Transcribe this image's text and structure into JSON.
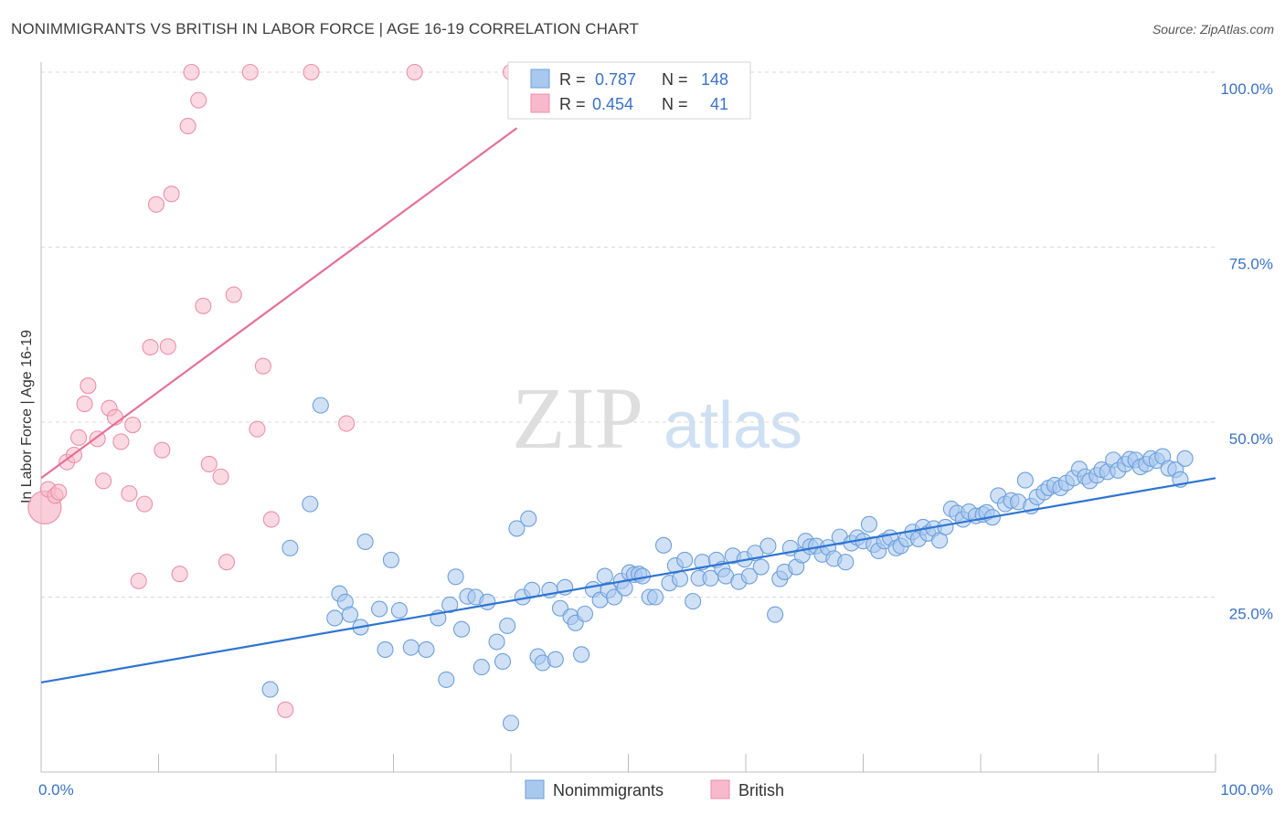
{
  "title": "NONIMMIGRANTS VS BRITISH IN LABOR FORCE | AGE 16-19 CORRELATION CHART",
  "source": "Source: ZipAtlas.com",
  "watermark": {
    "zip": "ZIP",
    "atlas": "atlas"
  },
  "colors": {
    "blue_fill": "#a9c8ee",
    "blue_stroke": "#6c9fdc",
    "blue_line": "#2e74d1",
    "pink_fill": "#f7b9cb",
    "pink_stroke": "#ec8fab",
    "pink_line": "#e56f96",
    "tick_blue": "#3a72c4",
    "grid": "#d9d9d9"
  },
  "legend": {
    "r_label": "R =",
    "n_label": "N =",
    "rows": [
      {
        "series": "Nonimmigrants",
        "r": "0.787",
        "n": "148"
      },
      {
        "series": "British",
        "r": "0.454",
        "n": "41"
      }
    ]
  },
  "chart_data": {
    "type": "scatter",
    "title": "NONIMMIGRANTS VS BRITISH IN LABOR FORCE | AGE 16-19 CORRELATION CHART",
    "xlabel": "",
    "ylabel": "In Labor Force | Age 16-19",
    "xlim": [
      0,
      100
    ],
    "ylim": [
      0,
      100
    ],
    "x_ticks": [
      "0.0%",
      "100.0%"
    ],
    "y_ticks": [
      {
        "value": 25,
        "label": "25.0%"
      },
      {
        "value": 50,
        "label": "50.0%"
      },
      {
        "value": 75,
        "label": "75.0%"
      },
      {
        "value": 100,
        "label": "100.0%"
      }
    ],
    "grid": "horizontal dashed",
    "legend_position": "top-center",
    "series": [
      {
        "name": "Nonimmigrants",
        "color": "#a9c8ee",
        "trend": {
          "x": [
            0,
            100
          ],
          "y": [
            12.8,
            42.0
          ]
        },
        "points": [
          [
            19.5,
            11.8
          ],
          [
            23.8,
            52.4
          ],
          [
            22.9,
            38.3
          ],
          [
            21.2,
            32.0
          ],
          [
            25.4,
            25.5
          ],
          [
            25.0,
            22.0
          ],
          [
            25.9,
            24.3
          ],
          [
            26.3,
            22.5
          ],
          [
            27.2,
            20.7
          ],
          [
            27.6,
            32.9
          ],
          [
            28.8,
            23.3
          ],
          [
            29.3,
            17.5
          ],
          [
            29.8,
            30.3
          ],
          [
            30.5,
            23.1
          ],
          [
            31.5,
            17.8
          ],
          [
            32.8,
            17.5
          ],
          [
            33.8,
            22.0
          ],
          [
            34.5,
            13.2
          ],
          [
            34.8,
            23.9
          ],
          [
            35.3,
            27.9
          ],
          [
            35.8,
            20.4
          ],
          [
            36.3,
            25.1
          ],
          [
            37.0,
            25.0
          ],
          [
            37.5,
            15.0
          ],
          [
            38.0,
            24.3
          ],
          [
            38.8,
            18.6
          ],
          [
            39.3,
            15.8
          ],
          [
            39.7,
            20.9
          ],
          [
            40.0,
            7.0
          ],
          [
            40.5,
            34.8
          ],
          [
            41.0,
            25.0
          ],
          [
            41.5,
            36.2
          ],
          [
            41.8,
            26.0
          ],
          [
            42.3,
            16.5
          ],
          [
            42.7,
            15.6
          ],
          [
            43.3,
            26.0
          ],
          [
            43.8,
            16.1
          ],
          [
            44.2,
            23.4
          ],
          [
            44.6,
            26.4
          ],
          [
            45.1,
            22.2
          ],
          [
            45.5,
            21.3
          ],
          [
            46.0,
            16.8
          ],
          [
            46.3,
            22.6
          ],
          [
            47.0,
            26.1
          ],
          [
            47.6,
            24.6
          ],
          [
            48.0,
            28.0
          ],
          [
            48.3,
            26.0
          ],
          [
            48.8,
            25.0
          ],
          [
            49.4,
            27.3
          ],
          [
            49.7,
            26.3
          ],
          [
            50.1,
            28.5
          ],
          [
            50.5,
            28.2
          ],
          [
            50.9,
            28.3
          ],
          [
            51.2,
            28.0
          ],
          [
            51.8,
            25.0
          ],
          [
            52.3,
            25.0
          ],
          [
            53.0,
            32.4
          ],
          [
            53.5,
            27.0
          ],
          [
            54.0,
            29.5
          ],
          [
            54.4,
            27.6
          ],
          [
            54.8,
            30.3
          ],
          [
            55.5,
            24.4
          ],
          [
            56.0,
            27.7
          ],
          [
            56.3,
            30.0
          ],
          [
            57.0,
            27.7
          ],
          [
            57.5,
            30.3
          ],
          [
            58.0,
            29.0
          ],
          [
            58.3,
            28.0
          ],
          [
            58.9,
            30.9
          ],
          [
            59.4,
            27.2
          ],
          [
            59.9,
            30.4
          ],
          [
            60.3,
            28.0
          ],
          [
            60.8,
            31.3
          ],
          [
            61.3,
            29.3
          ],
          [
            61.9,
            32.3
          ],
          [
            62.5,
            22.5
          ],
          [
            62.9,
            27.6
          ],
          [
            63.3,
            28.6
          ],
          [
            63.8,
            32.0
          ],
          [
            64.3,
            29.3
          ],
          [
            64.8,
            31.0
          ],
          [
            65.1,
            33.0
          ],
          [
            65.5,
            32.2
          ],
          [
            66.0,
            32.3
          ],
          [
            66.5,
            31.1
          ],
          [
            67.0,
            32.1
          ],
          [
            67.5,
            30.5
          ],
          [
            68.0,
            33.6
          ],
          [
            68.5,
            30.0
          ],
          [
            69.0,
            32.7
          ],
          [
            69.5,
            33.5
          ],
          [
            70.0,
            33.0
          ],
          [
            70.5,
            35.4
          ],
          [
            70.9,
            32.5
          ],
          [
            71.3,
            31.6
          ],
          [
            71.8,
            33.0
          ],
          [
            72.3,
            33.5
          ],
          [
            72.8,
            32.0
          ],
          [
            73.2,
            32.3
          ],
          [
            73.7,
            33.3
          ],
          [
            74.2,
            34.3
          ],
          [
            74.7,
            33.3
          ],
          [
            75.1,
            35.0
          ],
          [
            75.5,
            34.1
          ],
          [
            76.0,
            34.8
          ],
          [
            76.5,
            33.1
          ],
          [
            77.0,
            35.0
          ],
          [
            77.5,
            37.6
          ],
          [
            78.0,
            37.0
          ],
          [
            78.5,
            36.1
          ],
          [
            79.0,
            37.2
          ],
          [
            79.6,
            36.6
          ],
          [
            80.2,
            36.8
          ],
          [
            80.5,
            37.1
          ],
          [
            81.0,
            36.4
          ],
          [
            81.5,
            39.5
          ],
          [
            82.1,
            38.3
          ],
          [
            82.6,
            38.8
          ],
          [
            83.2,
            38.6
          ],
          [
            83.8,
            41.7
          ],
          [
            84.3,
            38.0
          ],
          [
            84.8,
            39.3
          ],
          [
            85.4,
            40.0
          ],
          [
            85.8,
            40.6
          ],
          [
            86.3,
            41.0
          ],
          [
            86.8,
            40.6
          ],
          [
            87.3,
            41.3
          ],
          [
            87.9,
            42.0
          ],
          [
            88.4,
            43.3
          ],
          [
            88.9,
            42.2
          ],
          [
            89.3,
            41.6
          ],
          [
            89.9,
            42.4
          ],
          [
            90.3,
            43.2
          ],
          [
            90.8,
            42.9
          ],
          [
            91.3,
            44.6
          ],
          [
            91.7,
            43.1
          ],
          [
            92.3,
            44.0
          ],
          [
            92.7,
            44.7
          ],
          [
            93.2,
            44.6
          ],
          [
            93.6,
            43.6
          ],
          [
            94.1,
            44.0
          ],
          [
            94.5,
            44.8
          ],
          [
            95.0,
            44.5
          ],
          [
            95.5,
            45.1
          ],
          [
            96.0,
            43.4
          ],
          [
            96.6,
            43.2
          ],
          [
            97.0,
            41.8
          ],
          [
            97.4,
            44.8
          ]
        ]
      },
      {
        "name": "British",
        "color": "#f7b9cb",
        "trend": {
          "x": [
            0,
            40.5
          ],
          "y": [
            42.0,
            92.0
          ]
        },
        "points": [
          [
            0.3,
            37.8
          ],
          [
            0.6,
            40.4
          ],
          [
            1.2,
            39.5
          ],
          [
            1.5,
            40.0
          ],
          [
            2.2,
            44.3
          ],
          [
            2.8,
            45.3
          ],
          [
            3.2,
            47.8
          ],
          [
            3.7,
            52.6
          ],
          [
            4.0,
            55.2
          ],
          [
            4.8,
            47.6
          ],
          [
            5.3,
            41.6
          ],
          [
            5.8,
            52.0
          ],
          [
            6.3,
            50.7
          ],
          [
            6.8,
            47.2
          ],
          [
            7.5,
            39.8
          ],
          [
            7.8,
            49.6
          ],
          [
            8.3,
            27.3
          ],
          [
            8.8,
            38.3
          ],
          [
            9.3,
            60.7
          ],
          [
            9.8,
            81.1
          ],
          [
            10.3,
            46.0
          ],
          [
            10.8,
            60.8
          ],
          [
            11.1,
            82.6
          ],
          [
            11.8,
            28.3
          ],
          [
            12.5,
            92.3
          ],
          [
            12.8,
            100.0
          ],
          [
            13.4,
            96.0
          ],
          [
            13.8,
            66.6
          ],
          [
            14.3,
            44.0
          ],
          [
            15.3,
            42.2
          ],
          [
            15.8,
            30.0
          ],
          [
            16.4,
            68.2
          ],
          [
            17.8,
            100.0
          ],
          [
            18.4,
            49.0
          ],
          [
            18.9,
            58.0
          ],
          [
            19.6,
            36.1
          ],
          [
            20.8,
            8.9
          ],
          [
            23.0,
            100.0
          ],
          [
            26.0,
            49.8
          ],
          [
            31.8,
            100.0
          ],
          [
            40.0,
            100.0
          ]
        ]
      }
    ]
  }
}
